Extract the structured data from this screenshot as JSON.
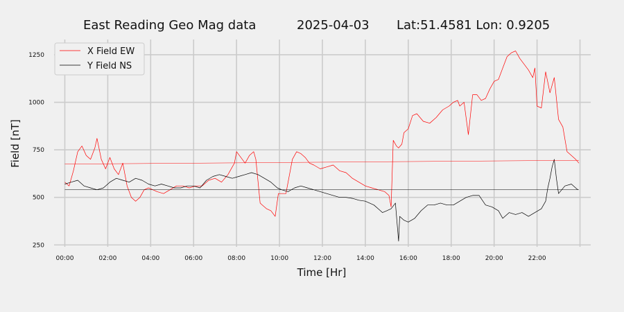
{
  "colors": {
    "background": "#f0f0f0",
    "grid": "#cbcbcb",
    "x_series": "#ff0000",
    "y_series": "#000000"
  },
  "chart_data": {
    "type": "line",
    "title": {
      "name": "East Reading Geo Mag data",
      "date": "2025-04-03",
      "location": "Lat:51.4581  Lon: 0.9205"
    },
    "xlabel": "Time  [Hr]",
    "ylabel": "Field  [nT]",
    "x_unit": "hours",
    "xlim": [
      -0.5,
      24.5
    ],
    "ylim": [
      240,
      1330
    ],
    "x_ticks": [
      0,
      2,
      4,
      6,
      8,
      10,
      12,
      14,
      16,
      18,
      20,
      22,
      24
    ],
    "x_tick_labels": [
      "00:00",
      "02:00",
      "04:00",
      "06:00",
      "08:00",
      "10:00",
      "12:00",
      "14:00",
      "16:00",
      "18:00",
      "20:00",
      "22:00",
      ""
    ],
    "y_ticks": [
      250,
      500,
      750,
      1000,
      1250
    ],
    "y_tick_labels": [
      "250",
      "500",
      "750",
      "1000",
      "1250"
    ],
    "grid": true,
    "legend_position": "top-left",
    "series": [
      {
        "name": "X Field EW",
        "color": "#ff0000",
        "x": [
          0,
          0.2,
          0.4,
          0.6,
          0.8,
          1.0,
          1.2,
          1.4,
          1.5,
          1.7,
          1.9,
          2.1,
          2.3,
          2.5,
          2.7,
          2.9,
          3.1,
          3.3,
          3.5,
          3.7,
          3.9,
          4.1,
          4.3,
          4.6,
          4.9,
          5.2,
          5.5,
          5.8,
          6.1,
          6.4,
          6.7,
          7.0,
          7.3,
          7.6,
          7.9,
          8.0,
          8.2,
          8.4,
          8.6,
          8.8,
          8.9,
          9.1,
          9.2,
          9.4,
          9.6,
          9.8,
          9.95,
          10.1,
          10.3,
          10.6,
          10.8,
          11.0,
          11.2,
          11.4,
          11.6,
          11.9,
          12.2,
          12.5,
          12.8,
          13.1,
          13.4,
          13.7,
          14.0,
          14.3,
          14.6,
          14.9,
          15.1,
          15.2,
          15.3,
          15.45,
          15.55,
          15.7,
          15.8,
          16.0,
          16.2,
          16.4,
          16.7,
          17.0,
          17.3,
          17.6,
          17.9,
          18.1,
          18.3,
          18.4,
          18.6,
          18.8,
          19.0,
          19.2,
          19.4,
          19.6,
          19.8,
          20.0,
          20.2,
          20.4,
          20.6,
          20.8,
          21.0,
          21.2,
          21.4,
          21.6,
          21.7,
          21.8,
          21.9,
          22.0,
          22.2,
          22.4,
          22.6,
          22.8,
          22.9,
          23.0,
          23.2,
          23.4,
          23.6,
          23.8,
          23.95
        ],
        "y": [
          580,
          560,
          640,
          740,
          770,
          720,
          700,
          760,
          810,
          700,
          650,
          710,
          650,
          620,
          680,
          560,
          500,
          480,
          500,
          540,
          550,
          540,
          530,
          520,
          540,
          560,
          560,
          550,
          560,
          560,
          590,
          600,
          580,
          620,
          680,
          740,
          710,
          680,
          720,
          740,
          700,
          470,
          460,
          440,
          430,
          400,
          520,
          520,
          520,
          700,
          740,
          730,
          710,
          680,
          670,
          650,
          660,
          670,
          640,
          630,
          600,
          580,
          560,
          550,
          540,
          530,
          510,
          450,
          800,
          770,
          760,
          780,
          840,
          860,
          930,
          940,
          900,
          890,
          920,
          960,
          980,
          1000,
          1010,
          980,
          1000,
          830,
          1040,
          1040,
          1010,
          1020,
          1070,
          1110,
          1120,
          1180,
          1240,
          1260,
          1270,
          1230,
          1200,
          1170,
          1150,
          1130,
          1180,
          980,
          970,
          1160,
          1050,
          1130,
          1020,
          910,
          870,
          740,
          720,
          700,
          680
        ]
      },
      {
        "name": "Y Field NS",
        "color": "#000000",
        "x": [
          0,
          0.3,
          0.6,
          0.9,
          1.2,
          1.5,
          1.8,
          2.1,
          2.4,
          2.7,
          3.0,
          3.3,
          3.6,
          3.9,
          4.2,
          4.5,
          4.8,
          5.1,
          5.4,
          5.7,
          6.0,
          6.3,
          6.6,
          6.9,
          7.2,
          7.5,
          7.8,
          8.1,
          8.4,
          8.7,
          9.0,
          9.3,
          9.6,
          9.9,
          10.1,
          10.4,
          10.7,
          11.0,
          11.3,
          11.6,
          11.9,
          12.2,
          12.5,
          12.8,
          13.1,
          13.4,
          13.7,
          14.0,
          14.2,
          14.4,
          14.6,
          14.8,
          15.0,
          15.2,
          15.4,
          15.55,
          15.6,
          15.8,
          16.0,
          16.3,
          16.6,
          16.9,
          17.2,
          17.5,
          17.8,
          18.1,
          18.4,
          18.7,
          19.0,
          19.3,
          19.6,
          19.9,
          20.2,
          20.4,
          20.7,
          21.0,
          21.3,
          21.6,
          21.9,
          22.2,
          22.4,
          22.5,
          22.6,
          22.7,
          22.8,
          22.9,
          23.0,
          23.3,
          23.6,
          23.9
        ],
        "y": [
          570,
          580,
          590,
          560,
          550,
          540,
          550,
          580,
          600,
          590,
          580,
          600,
          590,
          570,
          560,
          570,
          560,
          550,
          550,
          560,
          560,
          550,
          590,
          610,
          620,
          610,
          600,
          610,
          620,
          630,
          620,
          600,
          580,
          550,
          540,
          530,
          550,
          560,
          550,
          540,
          530,
          520,
          510,
          500,
          500,
          495,
          485,
          480,
          470,
          460,
          440,
          420,
          430,
          440,
          470,
          270,
          400,
          380,
          370,
          390,
          430,
          460,
          460,
          470,
          460,
          460,
          480,
          500,
          510,
          510,
          460,
          450,
          430,
          390,
          420,
          410,
          420,
          400,
          420,
          440,
          480,
          550,
          600,
          660,
          700,
          600,
          520,
          560,
          570,
          540
        ]
      },
      {
        "name": "",
        "color": "#ff0000",
        "x": [
          0,
          23.95
        ],
        "y": [
          675,
          695
        ]
      },
      {
        "name": "",
        "color": "#000000",
        "x": [
          0,
          23.95
        ],
        "y": [
          540,
          540
        ]
      }
    ]
  }
}
